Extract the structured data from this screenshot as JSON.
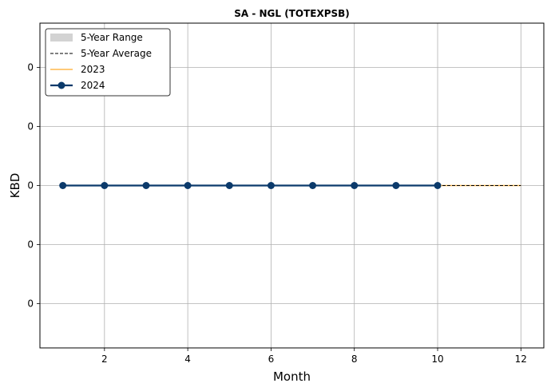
{
  "chart_data": {
    "type": "line",
    "title": "SA - NGL (TOTEXPSB)",
    "xlabel": "Month",
    "ylabel": "KBD",
    "xlim": [
      0.45,
      12.55
    ],
    "ylim": [
      -0.055,
      0.055
    ],
    "x_ticks": [
      2,
      4,
      6,
      8,
      10,
      12
    ],
    "y_ticks": [
      0.04,
      0.02,
      0.0,
      -0.02,
      -0.04
    ],
    "y_tick_labels": [
      "0",
      "0",
      "0",
      "0",
      "0"
    ],
    "grid": true,
    "legend_position": "top-left",
    "series": [
      {
        "name": "5-Year Range",
        "kind": "band",
        "color": "#d3d3d3",
        "x": [],
        "lower": [],
        "upper": []
      },
      {
        "name": "5-Year Average",
        "kind": "line",
        "style": "dashed",
        "color": "#000000",
        "x": [
          10,
          11,
          12
        ],
        "values": [
          0,
          0,
          0
        ]
      },
      {
        "name": "2023",
        "kind": "line",
        "style": "solid",
        "color": "#ffb84d",
        "x": [
          10,
          11,
          12
        ],
        "values": [
          0,
          0,
          0
        ]
      },
      {
        "name": "2024",
        "kind": "line",
        "style": "solid",
        "marker": "circle",
        "color": "#0b3a6b",
        "x": [
          1,
          2,
          3,
          4,
          5,
          6,
          7,
          8,
          9,
          10
        ],
        "values": [
          0,
          0,
          0,
          0,
          0,
          0,
          0,
          0,
          0,
          0
        ]
      }
    ]
  }
}
